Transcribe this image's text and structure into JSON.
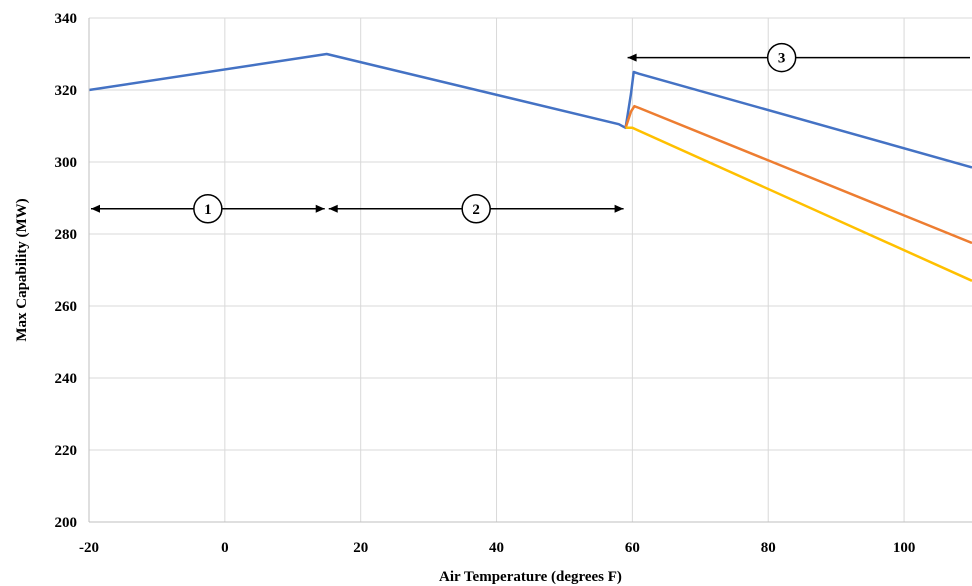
{
  "chart_data": {
    "type": "line",
    "title": "",
    "xlabel": "Air Temperature (degrees F)",
    "ylabel": "Max Capability (MW)",
    "xlim": [
      -20,
      110
    ],
    "ylim": [
      200,
      340
    ],
    "xticks": [
      -20,
      0,
      20,
      40,
      60,
      80,
      100
    ],
    "yticks": [
      200,
      220,
      240,
      260,
      280,
      300,
      320,
      340
    ],
    "grid": true,
    "series": [
      {
        "color": "#4472C4",
        "points": [
          [
            -20,
            320
          ],
          [
            15,
            330
          ],
          [
            58,
            310.5
          ],
          [
            59,
            309.5
          ],
          [
            59.8,
            319
          ],
          [
            60.2,
            325
          ],
          [
            61,
            324.5
          ],
          [
            110,
            298.5
          ]
        ]
      },
      {
        "color": "#ED7D31",
        "points": [
          [
            59,
            309.5
          ],
          [
            59.8,
            314
          ],
          [
            60.3,
            315.5
          ],
          [
            61,
            315
          ],
          [
            110,
            277.5
          ]
        ]
      },
      {
        "color": "#FFC000",
        "points": [
          [
            59,
            309.5
          ],
          [
            60,
            309.5
          ],
          [
            110,
            267
          ]
        ]
      }
    ],
    "annotations": [
      {
        "label": "1",
        "x_from": -20,
        "x_to": 15,
        "y": 287,
        "direction": "both"
      },
      {
        "label": "2",
        "x_from": 15,
        "x_to": 59,
        "y": 287,
        "direction": "both"
      },
      {
        "label": "3",
        "x_from": 59,
        "x_to": 110,
        "y": 329,
        "direction": "left"
      }
    ]
  }
}
